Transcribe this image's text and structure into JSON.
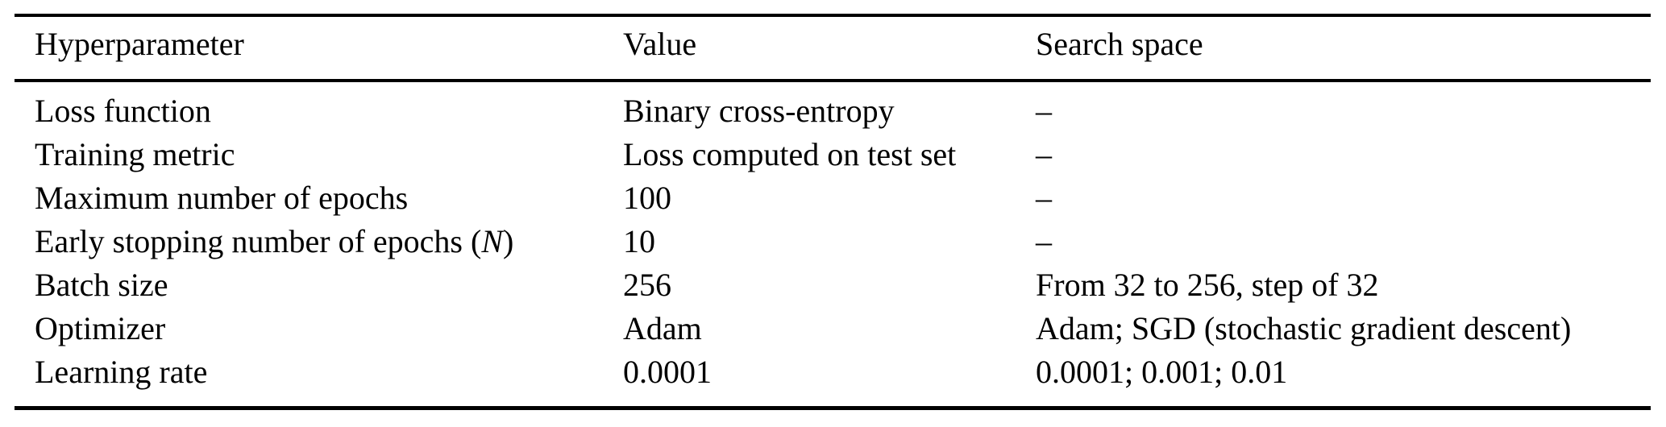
{
  "table": {
    "columns": {
      "hyperparameter": "Hyperparameter",
      "value": "Value",
      "search_space": "Search space"
    },
    "rows": [
      {
        "hyperparameter": "Loss function",
        "value": "Binary cross-entropy",
        "search_space": "–"
      },
      {
        "hyperparameter": "Training metric",
        "value": "Loss computed on test set",
        "search_space": "–"
      },
      {
        "hyperparameter": "Maximum number of epochs",
        "value": "100",
        "search_space": "–"
      },
      {
        "hyperparameter_parts": [
          "Early stopping number of epochs (",
          "N",
          ")"
        ],
        "value": "10",
        "search_space": "–"
      },
      {
        "hyperparameter": "Batch size",
        "value": "256",
        "search_space": "From 32 to 256, step of 32"
      },
      {
        "hyperparameter": "Optimizer",
        "value": "Adam",
        "search_space": "Adam; SGD (stochastic gradient descent)"
      },
      {
        "hyperparameter": "Learning rate",
        "value": "0.0001",
        "search_space": "0.0001; 0.001; 0.01"
      }
    ],
    "colors": {
      "text": "#000000",
      "background": "#ffffff",
      "rule": "#000000"
    }
  }
}
